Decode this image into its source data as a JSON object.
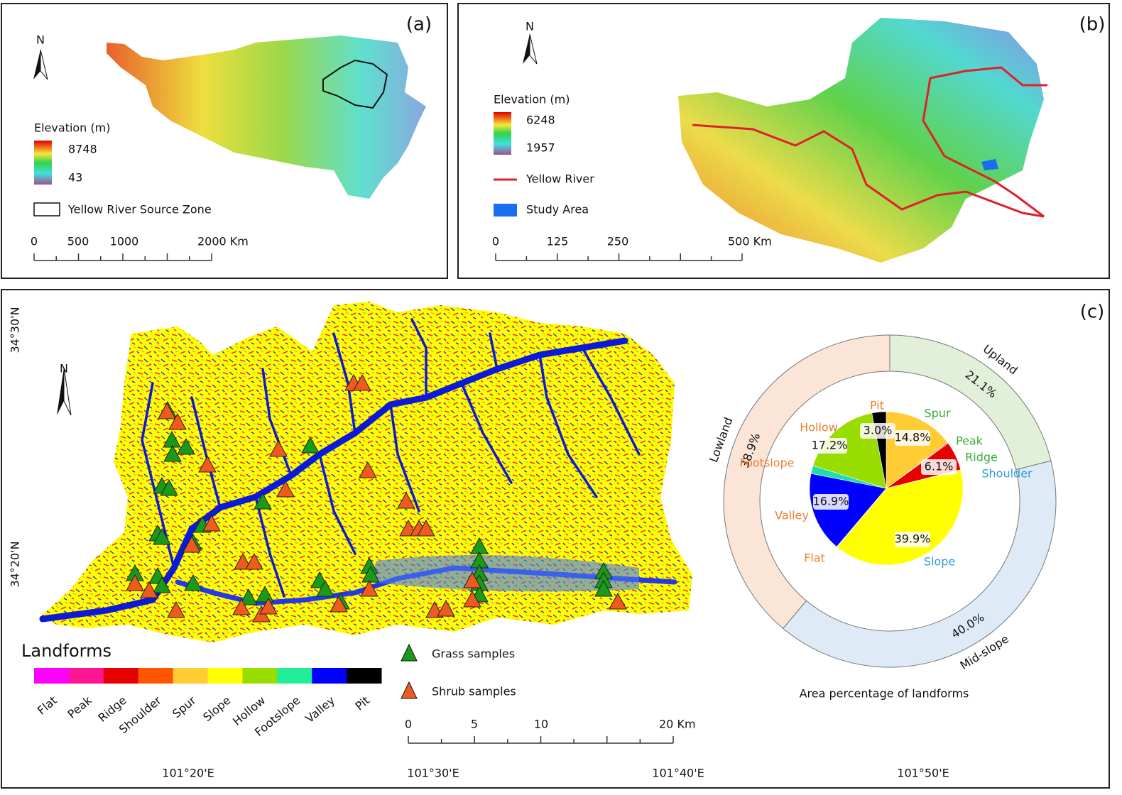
{
  "panel_a": {
    "label": "(a)",
    "north": "N",
    "legend_title": "Elevation (m)",
    "elevation_high": "8748",
    "elevation_low": "43",
    "boundary_label": "Yellow River Source Zone",
    "scale_labels": [
      "0",
      "500",
      "1000",
      "2000 Km"
    ]
  },
  "panel_b": {
    "label": "(b)",
    "north": "N",
    "legend_title": "Elevation (m)",
    "elevation_high": "6248",
    "elevation_low": "1957",
    "river_label": "Yellow River",
    "study_area_label": "Study Area",
    "scale_labels": [
      "0",
      "125",
      "250",
      "500 Km"
    ]
  },
  "panel_c": {
    "label": "(c)",
    "north": "N",
    "latitude_labels": [
      "34°30'N",
      "34°20'N"
    ],
    "longitude_labels": [
      "101°20'E",
      "101°30'E",
      "101°40'E",
      "101°50'E"
    ],
    "legend_title": "Landforms",
    "landforms": [
      {
        "name": "Flat",
        "color": "#ff00ff"
      },
      {
        "name": "Peak",
        "color": "#ff1493"
      },
      {
        "name": "Ridge",
        "color": "#e60000"
      },
      {
        "name": "Shoulder",
        "color": "#ff5500"
      },
      {
        "name": "Spur",
        "color": "#ffcc33"
      },
      {
        "name": "Slope",
        "color": "#ffff00"
      },
      {
        "name": "Hollow",
        "color": "#99dd00"
      },
      {
        "name": "Footslope",
        "color": "#22ee99"
      },
      {
        "name": "Valley",
        "color": "#0000ff"
      },
      {
        "name": "Pit",
        "color": "#000000"
      }
    ],
    "grass_label": "Grass samples",
    "shrub_label": "Shrub samples",
    "scale_labels": [
      "0",
      "5",
      "10",
      "20 Km"
    ]
  },
  "chart_data": {
    "type": "pie",
    "title": "Area percentage of landforms",
    "categories": [
      "Spur",
      "Peak",
      "Ridge",
      "Shoulder",
      "Slope",
      "Flat",
      "Valley",
      "Footslope",
      "Hollow",
      "Pit"
    ],
    "values": [
      14.8,
      0.2,
      6.1,
      0.1,
      39.9,
      0.1,
      16.9,
      1.7,
      17.2,
      3.0
    ],
    "value_labels": [
      "14.8%",
      null,
      "6.1%",
      null,
      "39.9%",
      null,
      "16.9%",
      null,
      "17.2%",
      "3.0%"
    ],
    "colors": [
      "#ffcc33",
      "#ff1493",
      "#e60000",
      "#ff5500",
      "#ffff00",
      "#ff00ff",
      "#0000ff",
      "#22ddaa",
      "#99dd00",
      "#000000"
    ],
    "label_colors": [
      "#3aaa35",
      "#3aaa35",
      "#3aaa35",
      "#2e9bd6",
      "#2e9bd6",
      "#ed7d31",
      "#ed7d31",
      "#ed7d31",
      "#ed7d31",
      "#ed7d31"
    ],
    "groups": {
      "categories": [
        "Upland",
        "Mid-slope",
        "Lowland"
      ],
      "values": [
        21.1,
        40.0,
        38.9
      ],
      "value_labels": [
        "21.1%",
        "40.0%",
        "38.9%"
      ],
      "colors": [
        "#e2f0d9",
        "#deebf7",
        "#fbe5d6"
      ]
    }
  }
}
